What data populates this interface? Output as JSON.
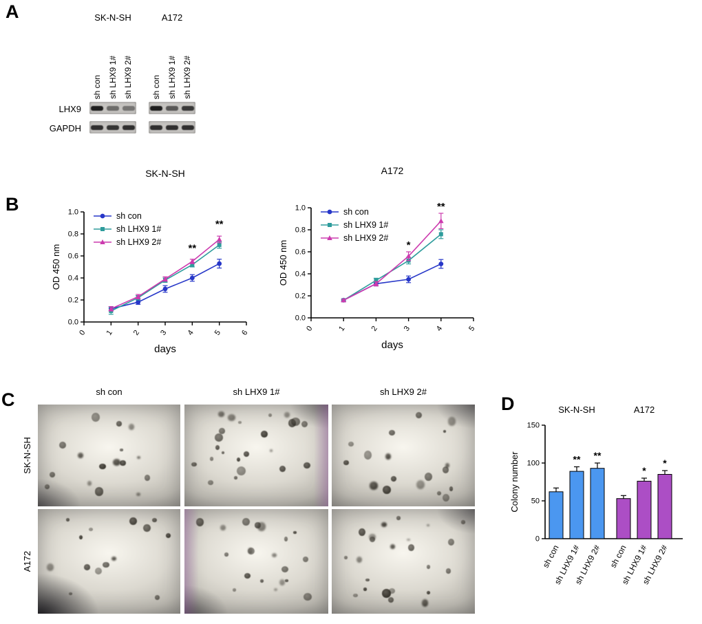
{
  "panels": {
    "a": {
      "label": "A",
      "groups": [
        "SK-N-SH",
        "A172"
      ],
      "lanes": [
        "sh con",
        "sh LHX9 1#",
        "sh LHX9 2#"
      ],
      "rows": [
        {
          "label": "LHX9",
          "bands": [
            [
              0.95,
              0.5,
              0.45
            ],
            [
              0.95,
              0.62,
              0.8
            ]
          ]
        },
        {
          "label": "GAPDH",
          "bands": [
            [
              0.85,
              0.82,
              0.85
            ],
            [
              0.85,
              0.85,
              0.85
            ]
          ]
        }
      ]
    },
    "b": {
      "label": "B"
    },
    "c": {
      "label": "C",
      "col_labels": [
        "sh con",
        "sh LHX9 1#",
        "sh LHX9 2#"
      ],
      "row_labels": [
        "SK-N-SH",
        "A172"
      ]
    },
    "d": {
      "label": "D"
    }
  },
  "chart_data": [
    {
      "type": "line",
      "title": "SK-N-SH",
      "xlabel": "days",
      "ylabel": "OD 450 nm",
      "xlim": [
        0,
        6
      ],
      "xticks": [
        0,
        1,
        2,
        3,
        4,
        5,
        6
      ],
      "ylim": [
        0,
        1.0
      ],
      "yticks": [
        0,
        0.2,
        0.4,
        0.6,
        0.8,
        1.0
      ],
      "x": [
        1,
        2,
        3,
        4,
        5
      ],
      "series": [
        {
          "name": "sh con",
          "marker": "circle",
          "color": "#2737C8",
          "values": [
            0.12,
            0.18,
            0.3,
            0.4,
            0.53
          ],
          "errors": [
            0.02,
            0.02,
            0.03,
            0.03,
            0.04
          ]
        },
        {
          "name": "sh LHX9 1#",
          "marker": "square",
          "color": "#2E9C9C",
          "values": [
            0.1,
            0.22,
            0.38,
            0.52,
            0.7
          ],
          "errors": [
            0.03,
            0.02,
            0.02,
            0.02,
            0.03
          ]
        },
        {
          "name": "sh LHX9 2#",
          "marker": "triangle",
          "color": "#CC3AAE",
          "values": [
            0.12,
            0.23,
            0.39,
            0.55,
            0.75
          ],
          "errors": [
            0.02,
            0.02,
            0.02,
            0.02,
            0.03
          ]
        }
      ],
      "annotations": [
        {
          "x": 4,
          "y": 0.64,
          "text": "**"
        },
        {
          "x": 5,
          "y": 0.86,
          "text": "**"
        }
      ],
      "legend_position": "top-left",
      "grid": false
    },
    {
      "type": "line",
      "title": "A172",
      "xlabel": "days",
      "ylabel": "OD 450 nm",
      "xlim": [
        0,
        5
      ],
      "xticks": [
        0,
        1,
        2,
        3,
        4,
        5
      ],
      "ylim": [
        0,
        1.0
      ],
      "yticks": [
        0,
        0.2,
        0.4,
        0.6,
        0.8,
        1.0
      ],
      "x": [
        1,
        2,
        3,
        4
      ],
      "series": [
        {
          "name": "sh con",
          "marker": "circle",
          "color": "#2737C8",
          "values": [
            0.16,
            0.31,
            0.35,
            0.49
          ],
          "errors": [
            0.01,
            0.02,
            0.03,
            0.04
          ]
        },
        {
          "name": "sh LHX9 1#",
          "marker": "square",
          "color": "#2E9C9C",
          "values": [
            0.16,
            0.34,
            0.52,
            0.76
          ],
          "errors": [
            0.01,
            0.02,
            0.03,
            0.04
          ]
        },
        {
          "name": "sh LHX9 2#",
          "marker": "triangle",
          "color": "#CC3AAE",
          "values": [
            0.16,
            0.31,
            0.56,
            0.88
          ],
          "errors": [
            0.01,
            0.02,
            0.04,
            0.07
          ]
        }
      ],
      "annotations": [
        {
          "x": 3,
          "y": 0.63,
          "text": "*"
        },
        {
          "x": 4,
          "y": 0.98,
          "text": "**"
        }
      ],
      "legend_position": "top-left",
      "grid": false
    },
    {
      "type": "bar",
      "title": "",
      "ylabel": "Colony number",
      "ylim": [
        0,
        150
      ],
      "yticks": [
        0,
        50,
        100,
        150
      ],
      "group_titles": [
        "SK-N-SH",
        "A172"
      ],
      "categories": [
        "sh con",
        "sh LHX9 1#",
        "sh LHX9 2#",
        "sh con",
        "sh LHX9 1#",
        "sh LHX9 2#"
      ],
      "values": [
        62,
        89,
        93,
        53,
        76,
        85
      ],
      "errors": [
        5,
        6,
        7,
        4,
        4,
        5
      ],
      "sig": [
        "",
        "**",
        "**",
        "",
        "*",
        "*"
      ],
      "colors": [
        "#4B97F0",
        "#4B97F0",
        "#4B97F0",
        "#AC4EC5",
        "#AC4EC5",
        "#AC4EC5"
      ],
      "grid": false
    }
  ]
}
